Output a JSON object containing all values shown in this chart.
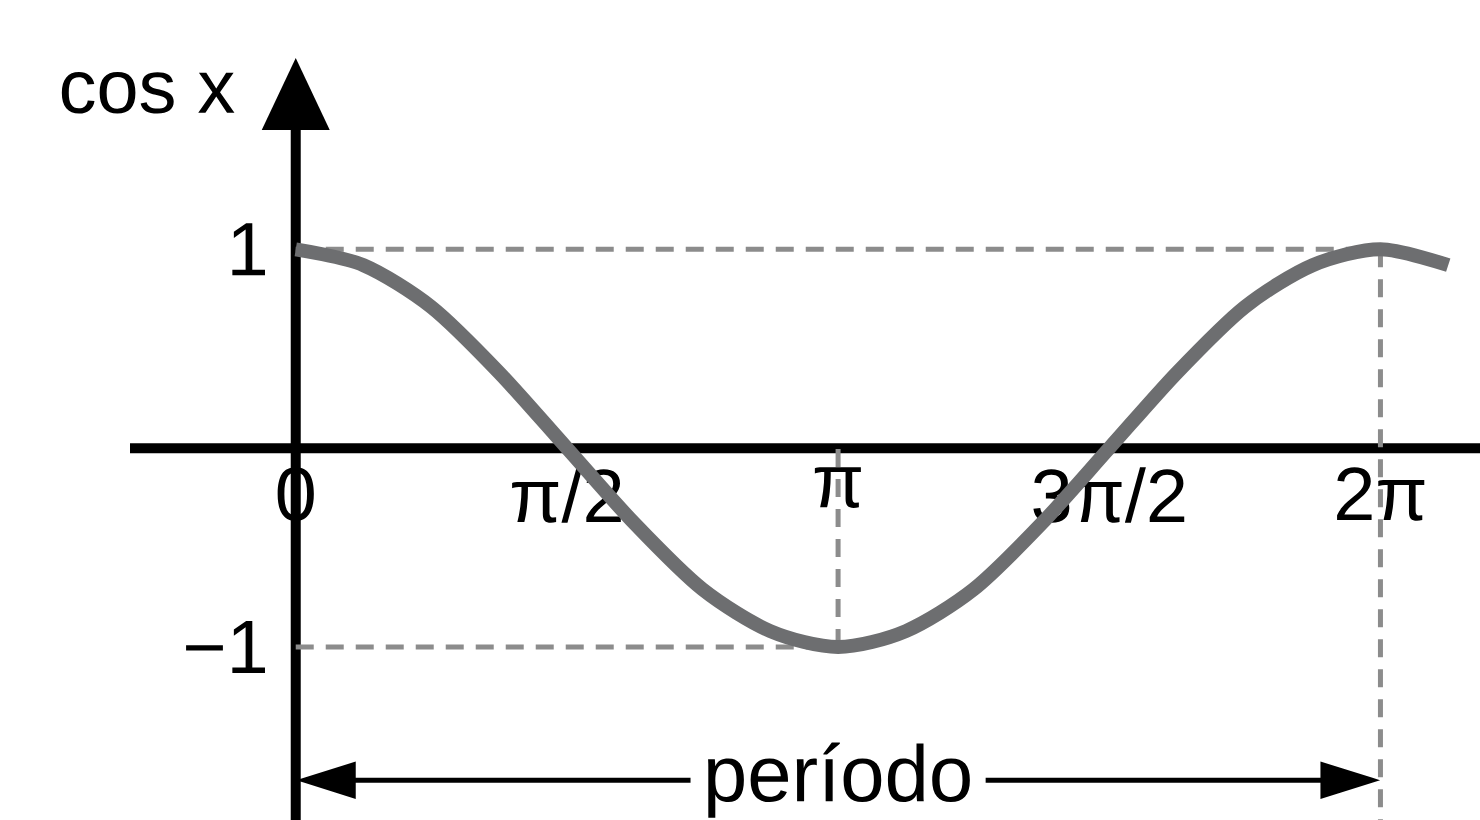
{
  "chart_data": {
    "type": "line",
    "ylabel": "cos x",
    "x": [
      0,
      0.3927,
      0.7854,
      1.1781,
      1.5708,
      1.9635,
      2.3562,
      2.7489,
      3.1416,
      3.5343,
      3.927,
      4.3197,
      4.7124,
      5.1051,
      5.4978,
      5.8905,
      6.2832,
      6.6759
    ],
    "series": [
      {
        "color": "#6d6e70",
        "values": [
          1,
          0.92,
          0.71,
          0.38,
          0,
          -0.38,
          -0.71,
          -0.92,
          -1,
          -0.92,
          -0.71,
          -0.38,
          0,
          0.38,
          0.71,
          0.92,
          1,
          0.92
        ]
      }
    ],
    "xlim": [
      -0.96,
      6.86
    ],
    "ylim": [
      -1.87,
      1.6
    ],
    "xticks": [
      {
        "value": 0,
        "label": "0"
      },
      {
        "value": 1.5708,
        "label": "π/2"
      },
      {
        "value": 3.1416,
        "label": "π"
      },
      {
        "value": 4.7124,
        "label": "3π/2"
      },
      {
        "value": 6.2832,
        "label": "2π"
      }
    ],
    "yticks": [
      {
        "value": -1,
        "label": "−1"
      },
      {
        "value": 1,
        "label": "1"
      }
    ],
    "ref_lines": [
      {
        "axis": "y",
        "value": 1,
        "color": "#8c8c8c",
        "line_style": "dashed"
      },
      {
        "axis": "y",
        "value": -1,
        "color": "#8c8c8c",
        "line_style": "dashed"
      },
      {
        "axis": "x",
        "value": 3.1416,
        "color": "#8c8c8c",
        "line_style": "dashed"
      },
      {
        "axis": "x",
        "value": 6.2832,
        "color": "#8c8c8c",
        "line_style": "dashed"
      }
    ],
    "annotations": [
      "período"
    ],
    "grid": false,
    "marker": "none",
    "line_style": "solid"
  }
}
